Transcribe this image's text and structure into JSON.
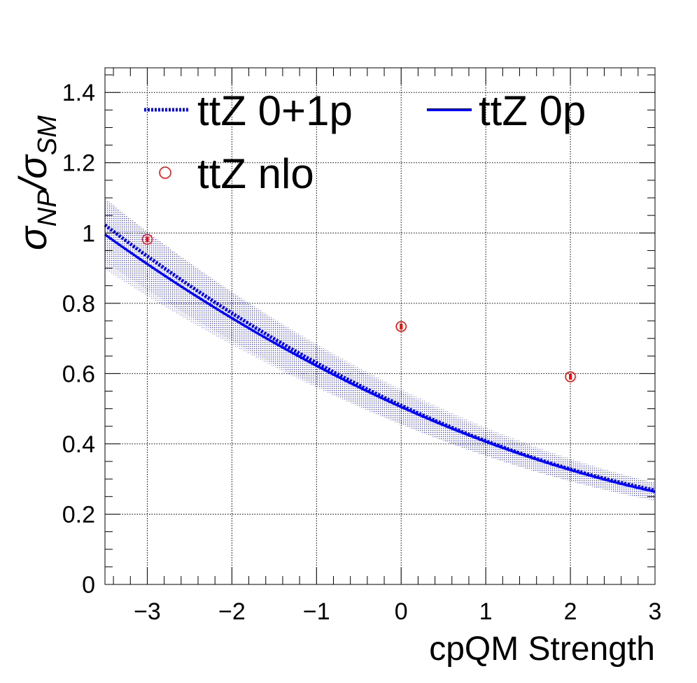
{
  "chart_data": {
    "type": "line",
    "xlabel": "cpQM Strength",
    "ylabel": {
      "num_symbol": "σ",
      "num_sub": "NP",
      "slash": "/",
      "den_symbol": "σ",
      "den_sub": "SM"
    },
    "xlim": [
      -3.5,
      3.0
    ],
    "ylim": [
      0,
      1.47
    ],
    "x_ticks": [
      -3,
      -2,
      -1,
      0,
      1,
      2,
      3
    ],
    "x_tick_labels": [
      "−3",
      "−2",
      "−1",
      "0",
      "1",
      "2",
      "3"
    ],
    "y_ticks": [
      0,
      0.2,
      0.4,
      0.6,
      0.8,
      1,
      1.2,
      1.4
    ],
    "y_tick_labels": [
      "0",
      "0.2",
      "0.4",
      "0.6",
      "0.8",
      "1",
      "1.2",
      "1.4"
    ],
    "grid": true,
    "legend_position": "top-left",
    "series": [
      {
        "name": "ttZ 0+1p",
        "style": "dotted",
        "color": "#0000ff",
        "curve": {
          "a": 0.5093,
          "b": -0.111,
          "c": 0.0102
        },
        "band": {
          "rel_down": 0.102,
          "rel_up": 0.075
        }
      },
      {
        "name": "ttZ 0p",
        "style": "solid",
        "color": "#0000ff",
        "curve": {
          "a": 0.505,
          "b": -0.108,
          "c": 0.0092
        },
        "band": {
          "rel_down": 0.1,
          "rel_up": 0.1
        }
      },
      {
        "name": "ttZ nlo",
        "style": "markers",
        "marker": "open-circle",
        "color": "#ff0000",
        "x": [
          -3,
          0,
          2
        ],
        "y": [
          0.982,
          0.734,
          0.591
        ],
        "err": [
          0.008,
          0.008,
          0.008
        ]
      }
    ]
  }
}
